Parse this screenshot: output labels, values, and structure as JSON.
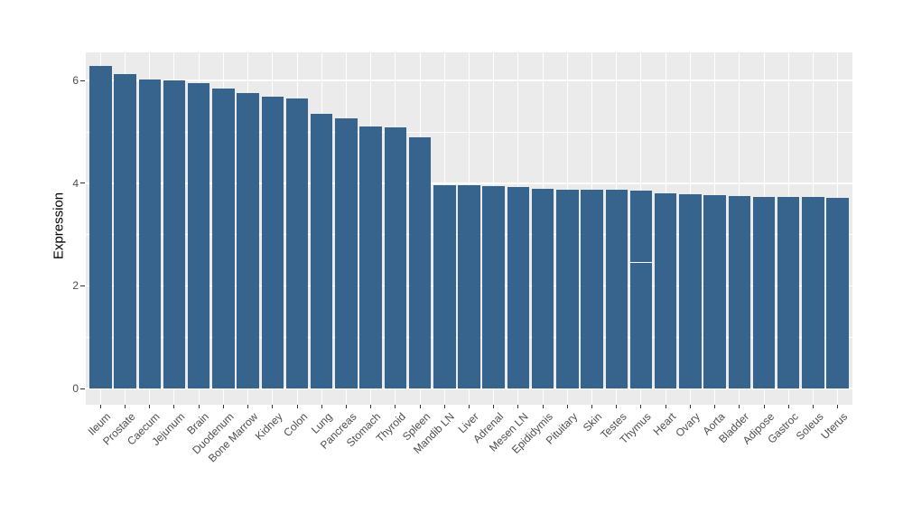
{
  "chart_data": {
    "type": "bar",
    "title": "",
    "xlabel": "",
    "ylabel": "Expression",
    "ylim": [
      -0.32,
      6.55
    ],
    "yticks": [
      0,
      2,
      4,
      6
    ],
    "ytick_labels": [
      "0",
      "2",
      "4",
      "6"
    ],
    "minor_gridlines": [
      1,
      3,
      5
    ],
    "grid": true,
    "legend": false,
    "categories": [
      "Ileum",
      "Prostate",
      "Caecum",
      "Jejunum",
      "Brain",
      "Duodenum",
      "Bone Marrow",
      "Kidney",
      "Colon",
      "Lung",
      "Pancreas",
      "Stomach",
      "Thyroid",
      "Spleen",
      "Mandib LN",
      "Liver",
      "Adrenal",
      "Mesen LN",
      "Epididymis",
      "Pituitary",
      "Skin",
      "Testes",
      "Thymus",
      "Heart",
      "Ovary",
      "Aorta",
      "Bladder",
      "Adipose",
      "Gastroc",
      "Soleus",
      "Uterus"
    ],
    "values": [
      6.28,
      6.13,
      6.02,
      6.01,
      5.95,
      5.84,
      5.75,
      5.69,
      5.65,
      5.36,
      5.26,
      5.11,
      5.08,
      4.9,
      3.96,
      3.96,
      3.95,
      3.93,
      3.89,
      3.88,
      3.87,
      3.87,
      3.85,
      3.81,
      3.79,
      3.77,
      3.75,
      3.74,
      3.73,
      3.73,
      3.71
    ],
    "segment_marker": {
      "category": "Thymus",
      "value": 2.46
    },
    "colors": {
      "bar": "#36648C",
      "panel_background": "#EBEBEB",
      "gridline": "#FFFFFF",
      "tick_mark": "#333333",
      "tick_text": "#4D4D4D",
      "axis_title_text": "#000000"
    }
  }
}
